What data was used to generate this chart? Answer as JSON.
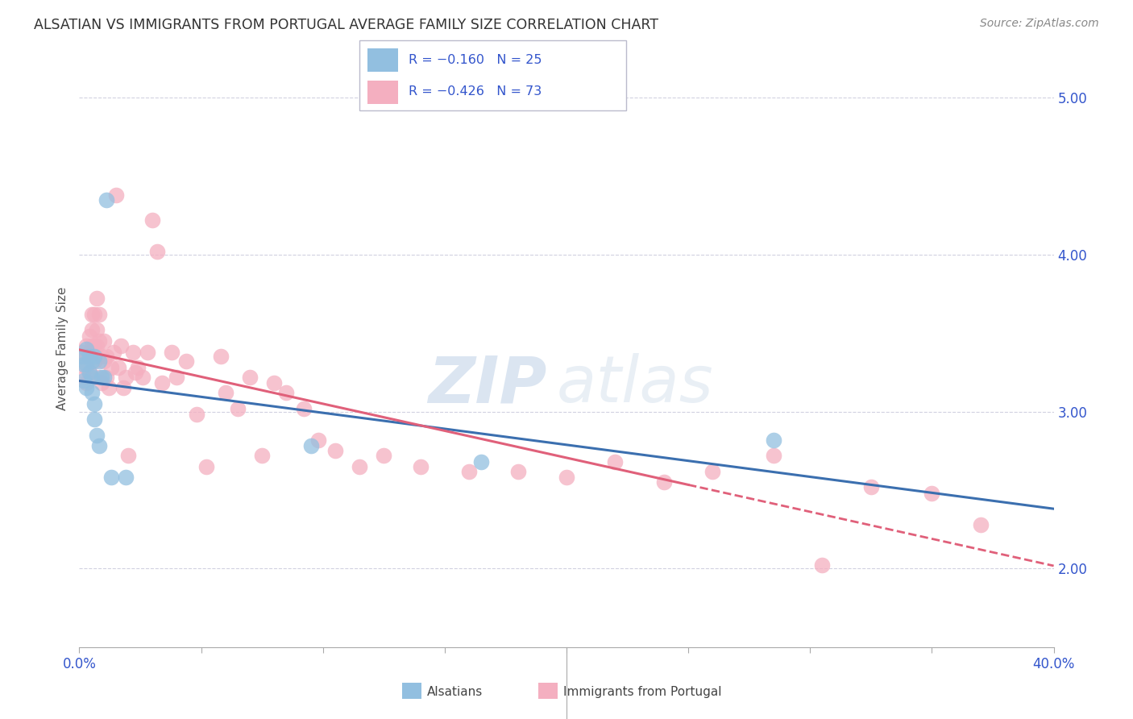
{
  "title": "ALSATIAN VS IMMIGRANTS FROM PORTUGAL AVERAGE FAMILY SIZE CORRELATION CHART",
  "source": "Source: ZipAtlas.com",
  "ylabel": "Average Family Size",
  "xlim": [
    0.0,
    0.4
  ],
  "ylim": [
    1.5,
    5.3
  ],
  "right_yticks": [
    2.0,
    3.0,
    4.0,
    5.0
  ],
  "watermark_zip": "ZIP",
  "watermark_atlas": "atlas",
  "blue_color": "#92bfe0",
  "pink_color": "#f4afc0",
  "blue_line_color": "#3b6faf",
  "pink_line_color": "#e0607a",
  "alsatians_x": [
    0.001,
    0.002,
    0.002,
    0.003,
    0.003,
    0.003,
    0.004,
    0.004,
    0.005,
    0.005,
    0.005,
    0.006,
    0.006,
    0.006,
    0.007,
    0.008,
    0.008,
    0.009,
    0.01,
    0.011,
    0.013,
    0.019,
    0.095,
    0.165,
    0.285
  ],
  "alsatians_y": [
    3.35,
    3.3,
    3.2,
    3.4,
    3.3,
    3.15,
    3.35,
    3.25,
    3.32,
    3.22,
    3.12,
    3.35,
    3.05,
    2.95,
    2.85,
    2.78,
    3.32,
    3.22,
    3.22,
    4.35,
    2.58,
    2.58,
    2.78,
    2.68,
    2.82
  ],
  "portugal_x": [
    0.001,
    0.002,
    0.002,
    0.003,
    0.003,
    0.003,
    0.004,
    0.004,
    0.004,
    0.005,
    0.005,
    0.005,
    0.006,
    0.006,
    0.006,
    0.007,
    0.007,
    0.007,
    0.008,
    0.008,
    0.008,
    0.009,
    0.009,
    0.01,
    0.01,
    0.011,
    0.011,
    0.012,
    0.013,
    0.014,
    0.015,
    0.016,
    0.017,
    0.018,
    0.019,
    0.02,
    0.022,
    0.023,
    0.024,
    0.026,
    0.028,
    0.03,
    0.032,
    0.034,
    0.038,
    0.04,
    0.044,
    0.048,
    0.052,
    0.058,
    0.06,
    0.065,
    0.07,
    0.075,
    0.08,
    0.085,
    0.092,
    0.098,
    0.105,
    0.115,
    0.125,
    0.14,
    0.16,
    0.18,
    0.2,
    0.22,
    0.24,
    0.26,
    0.285,
    0.305,
    0.325,
    0.35,
    0.37
  ],
  "portugal_y": [
    3.38,
    3.35,
    3.22,
    3.42,
    3.28,
    3.18,
    3.48,
    3.38,
    3.25,
    3.42,
    3.62,
    3.52,
    3.42,
    3.62,
    3.32,
    3.72,
    3.52,
    3.42,
    3.45,
    3.62,
    3.22,
    3.35,
    3.18,
    3.45,
    3.32,
    3.35,
    3.22,
    3.15,
    3.28,
    3.38,
    4.38,
    3.28,
    3.42,
    3.15,
    3.22,
    2.72,
    3.38,
    3.25,
    3.28,
    3.22,
    3.38,
    4.22,
    4.02,
    3.18,
    3.38,
    3.22,
    3.32,
    2.98,
    2.65,
    3.35,
    3.12,
    3.02,
    3.22,
    2.72,
    3.18,
    3.12,
    3.02,
    2.82,
    2.75,
    2.65,
    2.72,
    2.65,
    2.62,
    2.62,
    2.58,
    2.68,
    2.55,
    2.62,
    2.72,
    2.02,
    2.52,
    2.48,
    2.28
  ]
}
